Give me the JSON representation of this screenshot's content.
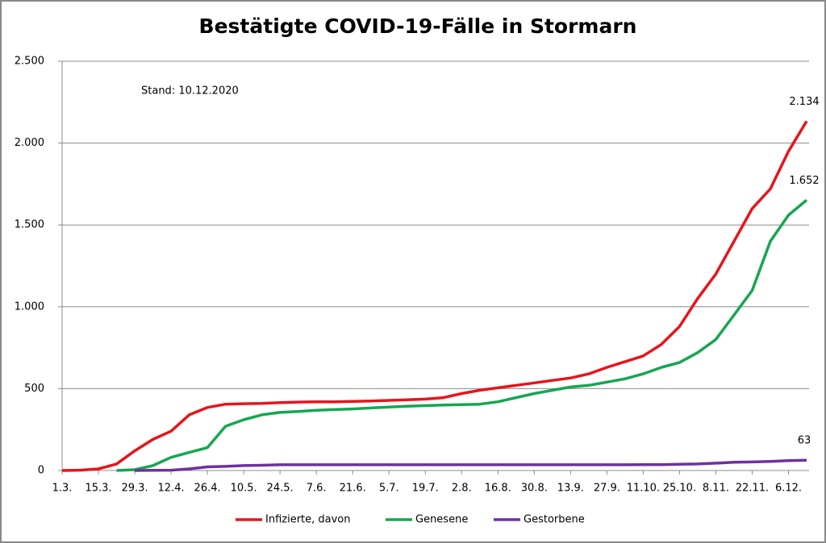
{
  "chart_data": {
    "type": "line",
    "title": "Bestätigte COVID-19-Fälle in Stormarn",
    "annotation": "Stand: 10.12.2020",
    "categories": [
      "1.3.",
      null,
      "15.3.",
      null,
      "29.3.",
      null,
      "12.4.",
      null,
      "26.4.",
      null,
      "10.5.",
      null,
      "24.5.",
      null,
      "7.6.",
      null,
      "21.6.",
      null,
      "5.7.",
      null,
      "19.7.",
      null,
      "2.8.",
      null,
      "16.8.",
      null,
      "30.8.",
      null,
      "13.9.",
      null,
      "27.9.",
      null,
      "11.10.",
      null,
      "25.10.",
      null,
      "8.11.",
      null,
      "22.11.",
      null,
      "6.12.",
      null
    ],
    "series": [
      {
        "name": "Infizierte, davon",
        "color": "#e8141b",
        "values": [
          0,
          2,
          10,
          40,
          120,
          190,
          240,
          340,
          385,
          405,
          408,
          410,
          415,
          418,
          420,
          420,
          422,
          424,
          428,
          432,
          436,
          445,
          470,
          490,
          505,
          520,
          535,
          550,
          565,
          590,
          630,
          665,
          700,
          770,
          880,
          1050,
          1200,
          1400,
          1600,
          1720,
          1950,
          2134
        ],
        "value_labels": [
          null,
          null,
          null,
          null,
          null,
          null,
          null,
          null,
          null,
          null,
          null,
          null,
          null,
          null,
          null,
          null,
          null,
          null,
          null,
          null,
          null,
          null,
          null,
          null,
          null,
          null,
          null,
          null,
          null,
          null,
          null,
          null,
          null,
          null,
          null,
          null,
          null,
          null,
          null,
          null,
          null,
          "2.134"
        ]
      },
      {
        "name": "Genesene",
        "color": "#16a651",
        "values": [
          null,
          null,
          null,
          0,
          5,
          30,
          80,
          110,
          140,
          270,
          310,
          340,
          355,
          360,
          368,
          372,
          376,
          382,
          388,
          392,
          396,
          400,
          402,
          405,
          420,
          445,
          470,
          490,
          510,
          520,
          540,
          560,
          590,
          630,
          660,
          720,
          800,
          950,
          1100,
          1400,
          1560,
          1652
        ],
        "value_labels": [
          null,
          null,
          null,
          null,
          null,
          null,
          null,
          null,
          null,
          null,
          null,
          null,
          null,
          null,
          null,
          null,
          null,
          null,
          null,
          null,
          null,
          null,
          null,
          null,
          null,
          null,
          null,
          null,
          null,
          null,
          null,
          null,
          null,
          null,
          null,
          null,
          null,
          null,
          null,
          null,
          null,
          "1.652"
        ]
      },
      {
        "name": "Gestorbene",
        "color": "#7030a0",
        "values": [
          null,
          null,
          null,
          null,
          0,
          1,
          2,
          10,
          22,
          25,
          30,
          32,
          35,
          35,
          35,
          35,
          35,
          35,
          35,
          35,
          35,
          35,
          35,
          35,
          35,
          35,
          35,
          35,
          35,
          35,
          35,
          35,
          36,
          36,
          38,
          40,
          45,
          50,
          52,
          55,
          60,
          63
        ]
      }
    ],
    "ylim": [
      0,
      2500
    ],
    "yticks": [
      0,
      500,
      {
        "value": 1000,
        "label": "1.000"
      },
      {
        "value": 1500,
        "label": "1.500"
      },
      {
        "value": 2000,
        "label": "2.000"
      },
      {
        "value": 2500,
        "label": "2.500"
      }
    ],
    "grid": true,
    "legend": "bottom"
  }
}
